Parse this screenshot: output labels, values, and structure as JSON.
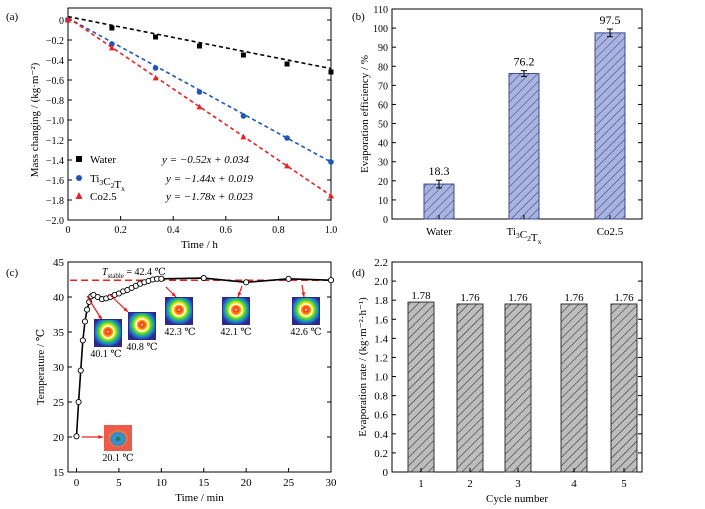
{
  "chart_data": [
    {
      "panel": "(a)",
      "type": "scatter",
      "xlabel": "Time / h",
      "ylabel": "Mass changing / (kg·m⁻²)",
      "xlim": [
        0,
        1.0
      ],
      "ylim": [
        -2.0,
        0.0
      ],
      "xticks": [
        "0",
        "0.2",
        "0.4",
        "0.6",
        "0.8",
        "1.0"
      ],
      "yticks": [
        "0",
        "−0.2",
        "−0.4",
        "−0.6",
        "−0.8",
        "−1.0",
        "−1.2",
        "−1.4",
        "−1.6",
        "−1.8",
        "−2.0"
      ],
      "legend_position": "bottom-left",
      "series": [
        {
          "name": "Water",
          "marker": "square",
          "color": "#000000",
          "fit": "y = −0.52x + 0.034",
          "slope": -0.52,
          "intercept": 0.034,
          "x": [
            0,
            0.167,
            0.333,
            0.5,
            0.667,
            0.833,
            1.0
          ],
          "y": [
            0,
            -0.08,
            -0.17,
            -0.26,
            -0.35,
            -0.44,
            -0.52
          ]
        },
        {
          "name": "Ti3C2Tx",
          "marker": "circle",
          "color": "#1f58b4",
          "fit": "y = −1.44x + 0.019",
          "slope": -1.44,
          "intercept": 0.019,
          "x": [
            0,
            0.167,
            0.333,
            0.5,
            0.667,
            0.833,
            1.0
          ],
          "y": [
            0,
            -0.24,
            -0.48,
            -0.72,
            -0.96,
            -1.18,
            -1.42
          ]
        },
        {
          "name": "Co2.5",
          "marker": "triangle",
          "color": "#e52222",
          "fit": "y = −1.78x + 0.023",
          "slope": -1.78,
          "intercept": 0.023,
          "x": [
            0,
            0.167,
            0.333,
            0.5,
            0.667,
            0.833,
            1.0
          ],
          "y": [
            0,
            -0.28,
            -0.58,
            -0.87,
            -1.17,
            -1.46,
            -1.76
          ]
        }
      ]
    },
    {
      "panel": "(b)",
      "type": "bar",
      "ylabel": "Evaporation efficiency / %",
      "ylim": [
        0,
        110
      ],
      "yticks": [
        "0",
        "10",
        "20",
        "30",
        "40",
        "50",
        "60",
        "70",
        "80",
        "90",
        "100",
        "110"
      ],
      "categories": [
        "Water",
        "Ti3C2Tx",
        "Co2.5"
      ],
      "values": [
        18.3,
        76.2,
        97.5
      ],
      "labels": [
        "18.3",
        "76.2",
        "97.5"
      ],
      "errors": [
        2.0,
        1.5,
        2.0
      ],
      "bar_color": "#aab4de",
      "hatch_color": "#3a4a90"
    },
    {
      "panel": "(c)",
      "type": "line",
      "xlabel": "Time / min",
      "ylabel": "Temperature / ℃",
      "xlim": [
        -1,
        30
      ],
      "ylim": [
        15,
        45
      ],
      "xticks": [
        "0",
        "5",
        "10",
        "15",
        "20",
        "25",
        "30"
      ],
      "yticks": [
        "15",
        "20",
        "25",
        "30",
        "35",
        "40",
        "45"
      ],
      "stable_label": "T",
      "stable_sub": "stable",
      "stable_text": "= 42.4 ℃",
      "stable_value": 42.4,
      "x": [
        0,
        0.25,
        0.5,
        0.75,
        1.0,
        1.25,
        1.5,
        1.75,
        2.0,
        2.5,
        3.0,
        3.5,
        4.0,
        4.5,
        5.0,
        5.5,
        6.0,
        6.5,
        7.0,
        7.5,
        8.0,
        8.5,
        9.0,
        9.5,
        10,
        15,
        20,
        25,
        30
      ],
      "y": [
        20.1,
        25,
        29.5,
        33.8,
        36.5,
        38.2,
        39.3,
        40.1,
        40.3,
        40.0,
        39.7,
        39.8,
        40.0,
        40.3,
        40.5,
        40.8,
        41.0,
        41.3,
        41.6,
        41.9,
        42.1,
        42.3,
        42.5,
        42.6,
        42.6,
        42.7,
        42.1,
        42.6,
        42.4
      ],
      "thermal_labels": [
        "20.1 ℃",
        "40.1 ℃",
        "40.8 ℃",
        "42.3 ℃",
        "42.1 ℃",
        "42.6 ℃"
      ]
    },
    {
      "panel": "(d)",
      "type": "bar",
      "xlabel": "Cycle number",
      "ylabel": "Evaporation rate / (kg·m⁻²·h⁻¹)",
      "ylim": [
        0,
        2.2
      ],
      "yticks": [
        "0",
        "0.2",
        "0.4",
        "0.6",
        "0.8",
        "1.0",
        "1.2",
        "1.4",
        "1.6",
        "1.8",
        "2.0",
        "2.2"
      ],
      "categories": [
        "1",
        "2",
        "3",
        "4",
        "5"
      ],
      "values": [
        1.78,
        1.76,
        1.76,
        1.76,
        1.76
      ],
      "labels": [
        "1.78",
        "1.76",
        "1.76",
        "1.76",
        "1.76"
      ],
      "bar_color": "#bdbdbd",
      "hatch_color": "#333333"
    }
  ]
}
